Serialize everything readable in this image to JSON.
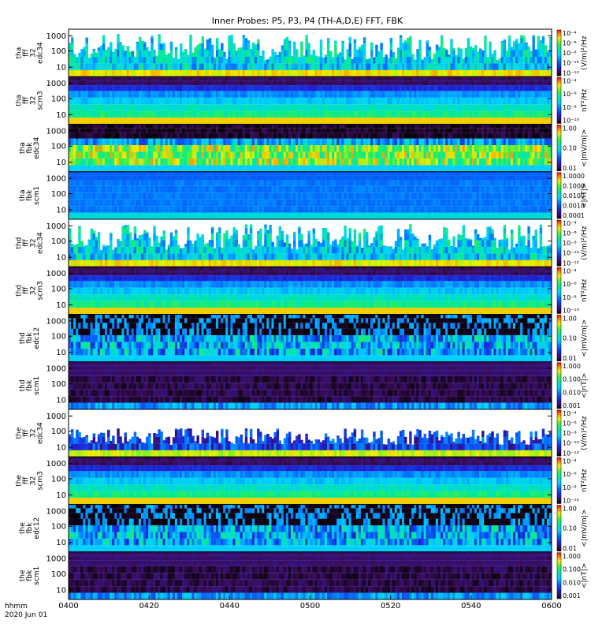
{
  "chart_data": {
    "type": "heatmap",
    "title": "Inner Probes: P5, P3, P4 (TH-A,D,E) FFT, FBK",
    "x_ticks": [
      "0400",
      "0420",
      "0440",
      "0500",
      "0520",
      "0540",
      "0600"
    ],
    "x_range": [
      "0400",
      "0600"
    ],
    "x_label": [
      "hhmm",
      "2020 Jun 01"
    ],
    "y_scale": "log",
    "colormap": "rainbow (black-purple-blue-cyan-green-yellow-red)",
    "panels": [
      {
        "label": [
          "tha",
          "fff",
          "32",
          "edc34"
        ],
        "y_ticks": [
          "1000",
          "100",
          "10"
        ],
        "cb_ticks": [
          "10⁻⁴",
          "10⁻⁶",
          "10⁻⁸",
          "10⁻¹⁰",
          "10⁻¹²"
        ],
        "cb_label": "(V/m)²/Hz",
        "style": "edc"
      },
      {
        "label": [
          "tha",
          "fff",
          "32",
          "scm3"
        ],
        "y_ticks": [
          "1000",
          "100",
          "10"
        ],
        "cb_ticks": [
          "10⁻⁴",
          "10⁻⁶",
          "10⁻⁸",
          "10⁻¹⁰"
        ],
        "cb_label": "nT²/Hz",
        "style": "scm"
      },
      {
        "label": [
          "tha",
          "fbk",
          "edc34"
        ],
        "y_ticks": [
          "1000",
          "100",
          "10"
        ],
        "cb_ticks": [
          "1.00",
          "0.10",
          "0.01"
        ],
        "cb_label": "<|mV/m|>",
        "style": "fbke"
      },
      {
        "label": [
          "tha",
          "fbk",
          "scm1"
        ],
        "y_ticks": [
          "1000",
          "100",
          "10"
        ],
        "cb_ticks": [
          "1.0000",
          "0.1000",
          "0.0100",
          "0.0010",
          "0.0001"
        ],
        "cb_label": "<|nT|>",
        "style": "fbkb_a"
      },
      {
        "label": [
          "thd",
          "fff",
          "32",
          "edc34"
        ],
        "y_ticks": [
          "1000",
          "100",
          "10"
        ],
        "cb_ticks": [
          "10⁻⁴",
          "10⁻⁶",
          "10⁻⁸",
          "10⁻¹⁰",
          "10⁻¹²"
        ],
        "cb_label": "(V/m)²/Hz",
        "style": "edc"
      },
      {
        "label": [
          "thd",
          "fff",
          "32",
          "scm3"
        ],
        "y_ticks": [
          "1000",
          "100",
          "10"
        ],
        "cb_ticks": [
          "10⁻⁴",
          "10⁻⁶",
          "10⁻⁸",
          "10⁻¹⁰"
        ],
        "cb_label": "nT²/Hz",
        "style": "scm"
      },
      {
        "label": [
          "thd",
          "fbk",
          "edc12"
        ],
        "y_ticks": [
          "1000",
          "100",
          "10"
        ],
        "cb_ticks": [
          "1.00",
          "0.10",
          "0.01"
        ],
        "cb_label": "<|mV/m|>",
        "style": "fbke_dark"
      },
      {
        "label": [
          "thd",
          "fbk",
          "scm1"
        ],
        "y_ticks": [
          "1000",
          "100",
          "10"
        ],
        "cb_ticks": [
          "1.000",
          "0.100",
          "0.010",
          "0.001"
        ],
        "cb_label": "<|nT|>",
        "style": "fbkb_d"
      },
      {
        "label": [
          "the",
          "fff",
          "32",
          "edc34"
        ],
        "y_ticks": [
          "1000",
          "100",
          "10"
        ],
        "cb_ticks": [
          "10⁻⁴",
          "10⁻⁶",
          "10⁻⁸",
          "10⁻¹⁰",
          "10⁻¹²"
        ],
        "cb_label": "(V/m)²/Hz",
        "style": "edc_sparse"
      },
      {
        "label": [
          "the",
          "fff",
          "32",
          "scm3"
        ],
        "y_ticks": [
          "1000",
          "100",
          "10"
        ],
        "cb_ticks": [
          "10⁻⁴",
          "10⁻⁶",
          "10⁻⁸",
          "10⁻¹⁰"
        ],
        "cb_label": "nT²/Hz",
        "style": "scm"
      },
      {
        "label": [
          "the",
          "fbk",
          "edc12"
        ],
        "y_ticks": [
          "1000",
          "100",
          "10"
        ],
        "cb_ticks": [
          "1.00",
          "0.10",
          "0.01"
        ],
        "cb_label": "<|mV/m|>",
        "style": "fbke_dark"
      },
      {
        "label": [
          "the",
          "fbk",
          "scm1"
        ],
        "y_ticks": [
          "1000",
          "100",
          "10"
        ],
        "cb_ticks": [
          "1.000",
          "0.100",
          "0.010",
          "0.001"
        ],
        "cb_label": "<|nT|>",
        "style": "fbkb_d"
      }
    ]
  }
}
